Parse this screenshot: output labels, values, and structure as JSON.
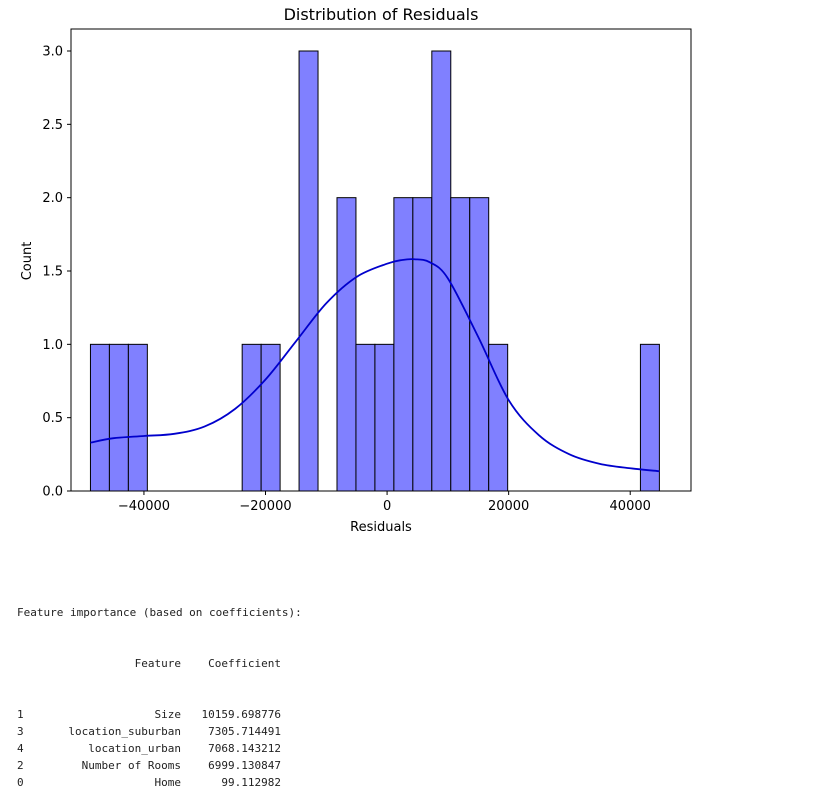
{
  "chart_data": {
    "type": "histogram",
    "title": "Distribution of Residuals",
    "xlabel": "Residuals",
    "ylabel": "Count",
    "xlim": [
      -52000,
      50000
    ],
    "ylim": [
      0,
      3.15
    ],
    "xticks": [
      -40000,
      -20000,
      0,
      20000,
      40000
    ],
    "xtick_labels": [
      "−40000",
      "−20000",
      "0",
      "20000",
      "40000"
    ],
    "yticks": [
      0,
      0.5,
      1.0,
      1.5,
      2.0,
      2.5,
      3.0
    ],
    "ytick_labels": [
      "0.0",
      "0.5",
      "1.0",
      "1.5",
      "2.0",
      "2.5",
      "3.0"
    ],
    "grid": false,
    "bar_color": "#8080ff",
    "bar_edge_color": "#000000",
    "kde_color": "#0000cc",
    "bin_width": 3120,
    "bins": [
      {
        "start": -48800,
        "count": 1
      },
      {
        "start": -45680,
        "count": 1
      },
      {
        "start": -42560,
        "count": 1
      },
      {
        "start": -39440,
        "count": 0
      },
      {
        "start": -36320,
        "count": 0
      },
      {
        "start": -33200,
        "count": 0
      },
      {
        "start": -30080,
        "count": 0
      },
      {
        "start": -26960,
        "count": 0
      },
      {
        "start": -23840,
        "count": 1
      },
      {
        "start": -20720,
        "count": 1
      },
      {
        "start": -17600,
        "count": 0
      },
      {
        "start": -14480,
        "count": 3
      },
      {
        "start": -11360,
        "count": 0
      },
      {
        "start": -8240,
        "count": 2
      },
      {
        "start": -5120,
        "count": 1
      },
      {
        "start": -2000,
        "count": 1
      },
      {
        "start": 1120,
        "count": 2
      },
      {
        "start": 4240,
        "count": 2
      },
      {
        "start": 7360,
        "count": 3
      },
      {
        "start": 10480,
        "count": 2
      },
      {
        "start": 13600,
        "count": 2
      },
      {
        "start": 16720,
        "count": 1
      },
      {
        "start": 19840,
        "count": 0
      },
      {
        "start": 22960,
        "count": 0
      },
      {
        "start": 26080,
        "count": 0
      },
      {
        "start": 29200,
        "count": 0
      },
      {
        "start": 32320,
        "count": 0
      },
      {
        "start": 35440,
        "count": 0
      },
      {
        "start": 38560,
        "count": 0
      },
      {
        "start": 41680,
        "count": 1
      }
    ],
    "kde": {
      "x": [
        -48800,
        -45000,
        -40000,
        -35000,
        -30000,
        -25000,
        -20000,
        -15000,
        -10000,
        -5000,
        0,
        2500,
        4500,
        7000,
        10000,
        15000,
        20000,
        25000,
        30000,
        35000,
        40000,
        44800
      ],
      "y": [
        0.33,
        0.36,
        0.375,
        0.39,
        0.44,
        0.56,
        0.76,
        1.02,
        1.28,
        1.46,
        1.55,
        1.575,
        1.58,
        1.56,
        1.45,
        1.05,
        0.62,
        0.38,
        0.25,
        0.185,
        0.155,
        0.135
      ]
    }
  },
  "output": {
    "header": "Feature importance (based on coefficients):",
    "columns": [
      "Feature",
      "Coefficient"
    ],
    "rows": [
      {
        "index": "1",
        "feature": "Size",
        "coefficient": "10159.698776"
      },
      {
        "index": "3",
        "feature": "location_suburban",
        "coefficient": "7305.714491"
      },
      {
        "index": "4",
        "feature": "location_urban",
        "coefficient": "7068.143212"
      },
      {
        "index": "2",
        "feature": "Number of Rooms",
        "coefficient": "6999.130847"
      },
      {
        "index": "0",
        "feature": "Home",
        "coefficient": "99.112982"
      }
    ]
  }
}
